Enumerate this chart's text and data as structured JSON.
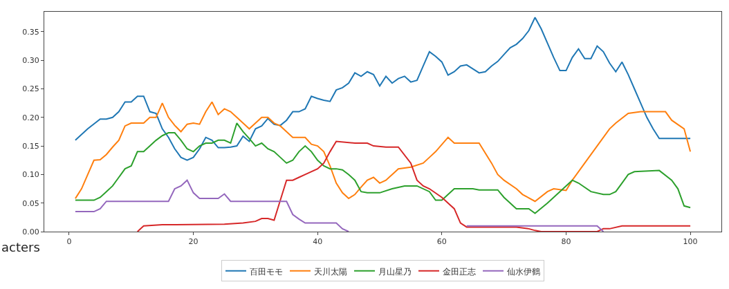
{
  "chart_data": {
    "type": "line",
    "annotations": [
      "acters"
    ],
    "xlim": [
      -4,
      105
    ],
    "xticks": [
      0,
      20,
      40,
      60,
      80,
      100
    ],
    "ylim": [
      0,
      0.385
    ],
    "yticks": [
      {
        "value": 0,
        "label": "0.00"
      },
      {
        "value": 0.05,
        "label": "0.05"
      },
      {
        "value": 0.1,
        "label": "0.10"
      },
      {
        "value": 0.15,
        "label": "0.15"
      },
      {
        "value": 0.2,
        "label": "0.20"
      },
      {
        "value": 0.25,
        "label": "0.25"
      },
      {
        "value": 0.3,
        "label": "0.30"
      },
      {
        "value": 0.35,
        "label": "0.35"
      }
    ],
    "grid": false,
    "legend": "bottom",
    "marker": "none",
    "line_style": "solid",
    "series": [
      {
        "name": "百田モモ",
        "color": "#1f77b4",
        "x": [
          1,
          3,
          5,
          6,
          7,
          8,
          9,
          10,
          11,
          12,
          13,
          14,
          15,
          16,
          17,
          18,
          19,
          20,
          21,
          22,
          23,
          24,
          25,
          26,
          27,
          28,
          29,
          30,
          31,
          32,
          33,
          34,
          35,
          36,
          37,
          38,
          39,
          40,
          41,
          42,
          43,
          44,
          45,
          46,
          47,
          48,
          49,
          50,
          51,
          52,
          53,
          54,
          55,
          56,
          57,
          58,
          59,
          60,
          61,
          62,
          63,
          64,
          65,
          66,
          67,
          68,
          69,
          70,
          71,
          72,
          73,
          74,
          75,
          76,
          77,
          78,
          79,
          80,
          81,
          82,
          83,
          84,
          85,
          86,
          87,
          88,
          89,
          90,
          91,
          92,
          93,
          94,
          95,
          100
        ],
        "values": [
          0.16,
          0.18,
          0.197,
          0.197,
          0.2,
          0.21,
          0.227,
          0.227,
          0.237,
          0.237,
          0.21,
          0.207,
          0.18,
          0.165,
          0.145,
          0.13,
          0.125,
          0.13,
          0.145,
          0.165,
          0.16,
          0.147,
          0.147,
          0.148,
          0.15,
          0.167,
          0.158,
          0.18,
          0.185,
          0.198,
          0.188,
          0.186,
          0.195,
          0.21,
          0.21,
          0.215,
          0.237,
          0.233,
          0.23,
          0.228,
          0.248,
          0.252,
          0.26,
          0.278,
          0.272,
          0.28,
          0.275,
          0.255,
          0.272,
          0.26,
          0.268,
          0.272,
          0.262,
          0.265,
          0.29,
          0.315,
          0.307,
          0.297,
          0.274,
          0.28,
          0.29,
          0.292,
          0.285,
          0.278,
          0.28,
          0.29,
          0.298,
          0.31,
          0.322,
          0.328,
          0.338,
          0.352,
          0.375,
          0.355,
          0.33,
          0.305,
          0.282,
          0.282,
          0.305,
          0.32,
          0.303,
          0.303,
          0.325,
          0.315,
          0.295,
          0.28,
          0.297,
          0.275,
          0.25,
          0.225,
          0.2,
          0.18,
          0.163,
          0.163
        ]
      },
      {
        "name": "天川太陽",
        "color": "#ff7f0e",
        "x": [
          1,
          2,
          3,
          4,
          5,
          6,
          7,
          8,
          9,
          10,
          12,
          13,
          14,
          15,
          16,
          17,
          18,
          19,
          20,
          21,
          22,
          23,
          24,
          25,
          26,
          27,
          28,
          29,
          30,
          31,
          32,
          33,
          34,
          35,
          36,
          38,
          39,
          40,
          41,
          42,
          43,
          44,
          45,
          46,
          47,
          48,
          49,
          50,
          51,
          52,
          53,
          55,
          57,
          58,
          59,
          61,
          62,
          66,
          68,
          69,
          70,
          72,
          73,
          75,
          77,
          78,
          80,
          81,
          83,
          85,
          87,
          88,
          90,
          92,
          96,
          97,
          99,
          100
        ],
        "values": [
          0.058,
          0.075,
          0.1,
          0.125,
          0.126,
          0.135,
          0.148,
          0.16,
          0.185,
          0.19,
          0.19,
          0.2,
          0.2,
          0.225,
          0.2,
          0.186,
          0.175,
          0.188,
          0.19,
          0.188,
          0.21,
          0.227,
          0.205,
          0.215,
          0.21,
          0.2,
          0.19,
          0.18,
          0.19,
          0.2,
          0.2,
          0.19,
          0.185,
          0.175,
          0.165,
          0.165,
          0.153,
          0.15,
          0.14,
          0.115,
          0.085,
          0.068,
          0.058,
          0.065,
          0.078,
          0.09,
          0.095,
          0.085,
          0.09,
          0.1,
          0.11,
          0.113,
          0.12,
          0.13,
          0.14,
          0.165,
          0.155,
          0.155,
          0.12,
          0.1,
          0.09,
          0.075,
          0.065,
          0.053,
          0.07,
          0.075,
          0.072,
          0.09,
          0.12,
          0.15,
          0.18,
          0.19,
          0.207,
          0.21,
          0.21,
          0.195,
          0.18,
          0.14
        ]
      },
      {
        "name": "月山星乃",
        "color": "#2ca02c",
        "x": [
          1,
          4,
          5,
          6,
          7,
          8,
          9,
          10,
          11,
          12,
          13,
          14,
          15,
          16,
          17,
          18,
          19,
          20,
          21,
          22,
          23,
          24,
          25,
          26,
          27,
          28,
          29,
          30,
          31,
          32,
          33,
          34,
          35,
          36,
          37,
          38,
          39,
          40,
          41,
          42,
          43,
          44,
          45,
          46,
          47,
          48,
          50,
          52,
          54,
          56,
          58,
          59,
          60,
          61,
          62,
          65,
          66,
          69,
          70,
          72,
          74,
          75,
          77,
          79,
          81,
          82,
          84,
          86,
          87,
          88,
          89,
          90,
          91,
          95,
          97,
          98,
          99,
          100
        ],
        "values": [
          0.055,
          0.055,
          0.06,
          0.07,
          0.08,
          0.095,
          0.11,
          0.115,
          0.14,
          0.14,
          0.15,
          0.16,
          0.168,
          0.173,
          0.173,
          0.16,
          0.145,
          0.14,
          0.15,
          0.155,
          0.155,
          0.16,
          0.16,
          0.155,
          0.19,
          0.175,
          0.163,
          0.15,
          0.155,
          0.145,
          0.14,
          0.13,
          0.12,
          0.125,
          0.14,
          0.15,
          0.14,
          0.125,
          0.115,
          0.11,
          0.11,
          0.108,
          0.1,
          0.09,
          0.07,
          0.068,
          0.068,
          0.075,
          0.08,
          0.08,
          0.07,
          0.055,
          0.055,
          0.065,
          0.075,
          0.075,
          0.073,
          0.073,
          0.06,
          0.04,
          0.04,
          0.032,
          0.05,
          0.07,
          0.09,
          0.085,
          0.07,
          0.065,
          0.065,
          0.07,
          0.085,
          0.1,
          0.105,
          0.107,
          0.09,
          0.075,
          0.045,
          0.042
        ]
      },
      {
        "name": "金田正志",
        "color": "#d62728",
        "x": [
          11,
          12,
          15,
          25,
          28,
          30,
          31,
          32,
          33,
          34,
          35,
          36,
          37,
          38,
          40,
          41,
          42,
          43,
          46,
          48,
          49,
          51,
          53,
          55,
          56,
          57,
          58,
          60,
          61,
          62,
          63,
          64,
          72,
          74,
          75,
          76,
          85,
          86,
          87,
          89,
          100
        ],
        "values": [
          0,
          0.01,
          0.012,
          0.013,
          0.015,
          0.018,
          0.023,
          0.023,
          0.02,
          0.055,
          0.09,
          0.09,
          0.095,
          0.1,
          0.11,
          0.12,
          0.14,
          0.158,
          0.155,
          0.155,
          0.15,
          0.148,
          0.148,
          0.12,
          0.09,
          0.08,
          0.075,
          0.06,
          0.05,
          0.04,
          0.015,
          0.008,
          0.008,
          0.005,
          0.002,
          0,
          0,
          0.005,
          0.005,
          0.01,
          0.01
        ]
      },
      {
        "name": "仙水伊鶴",
        "color": "#9467bd",
        "x": [
          1,
          4,
          5,
          6,
          16,
          17,
          18,
          19,
          20,
          21,
          24,
          25,
          26,
          35,
          36,
          37,
          38,
          43,
          44,
          45,
          46,
          64,
          85,
          86
        ],
        "values": [
          0.035,
          0.035,
          0.04,
          0.053,
          0.053,
          0.075,
          0.08,
          0.09,
          0.068,
          0.058,
          0.058,
          0.066,
          0.053,
          0.053,
          0.03,
          0.022,
          0.015,
          0.015,
          0.005,
          0,
          null,
          0.01,
          0.01,
          0
        ]
      }
    ]
  }
}
